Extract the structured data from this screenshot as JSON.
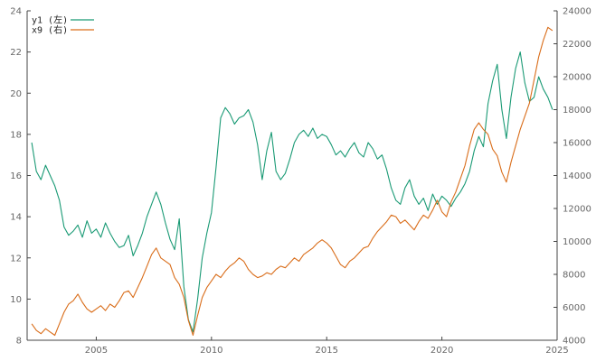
{
  "chart_data": {
    "type": "line",
    "title": "",
    "xlabel": "",
    "ylabel_left": "",
    "ylabel_right": "",
    "x_range": [
      2002.0,
      2025.0
    ],
    "y_left_range": [
      8,
      24
    ],
    "y_right_range": [
      4000,
      24000
    ],
    "x_ticks": [
      2005,
      2010,
      2015,
      2020,
      2025
    ],
    "y_left_ticks": [
      8,
      10,
      12,
      14,
      16,
      18,
      20,
      22,
      24
    ],
    "y_right_ticks": [
      4000,
      6000,
      8000,
      10000,
      12000,
      14000,
      16000,
      18000,
      20000,
      22000,
      24000
    ],
    "grid": false,
    "legend_position": "top-left",
    "series": [
      {
        "name": "y1 (左)",
        "axis": "left",
        "color": "#1a9a75",
        "points": [
          [
            2002.2,
            17.6
          ],
          [
            2002.4,
            16.2
          ],
          [
            2002.6,
            15.8
          ],
          [
            2002.8,
            16.5
          ],
          [
            2003.0,
            16.0
          ],
          [
            2003.2,
            15.5
          ],
          [
            2003.4,
            14.8
          ],
          [
            2003.6,
            13.5
          ],
          [
            2003.8,
            13.1
          ],
          [
            2004.0,
            13.3
          ],
          [
            2004.2,
            13.6
          ],
          [
            2004.4,
            13.0
          ],
          [
            2004.6,
            13.8
          ],
          [
            2004.8,
            13.2
          ],
          [
            2005.0,
            13.4
          ],
          [
            2005.2,
            13.0
          ],
          [
            2005.4,
            13.7
          ],
          [
            2005.6,
            13.2
          ],
          [
            2005.8,
            12.8
          ],
          [
            2006.0,
            12.5
          ],
          [
            2006.2,
            12.6
          ],
          [
            2006.4,
            13.1
          ],
          [
            2006.6,
            12.1
          ],
          [
            2006.8,
            12.6
          ],
          [
            2007.0,
            13.2
          ],
          [
            2007.2,
            14.0
          ],
          [
            2007.4,
            14.6
          ],
          [
            2007.6,
            15.2
          ],
          [
            2007.8,
            14.6
          ],
          [
            2008.0,
            13.7
          ],
          [
            2008.2,
            12.9
          ],
          [
            2008.4,
            12.4
          ],
          [
            2008.6,
            13.9
          ],
          [
            2008.8,
            10.6
          ],
          [
            2009.0,
            9.0
          ],
          [
            2009.2,
            8.4
          ],
          [
            2009.4,
            10.0
          ],
          [
            2009.6,
            12.0
          ],
          [
            2009.8,
            13.2
          ],
          [
            2010.0,
            14.2
          ],
          [
            2010.2,
            16.4
          ],
          [
            2010.4,
            18.8
          ],
          [
            2010.6,
            19.3
          ],
          [
            2010.8,
            19.0
          ],
          [
            2011.0,
            18.5
          ],
          [
            2011.2,
            18.8
          ],
          [
            2011.4,
            18.9
          ],
          [
            2011.6,
            19.2
          ],
          [
            2011.8,
            18.6
          ],
          [
            2012.0,
            17.5
          ],
          [
            2012.2,
            15.8
          ],
          [
            2012.4,
            17.2
          ],
          [
            2012.6,
            18.1
          ],
          [
            2012.8,
            16.2
          ],
          [
            2013.0,
            15.8
          ],
          [
            2013.2,
            16.1
          ],
          [
            2013.4,
            16.8
          ],
          [
            2013.6,
            17.6
          ],
          [
            2013.8,
            18.0
          ],
          [
            2014.0,
            18.2
          ],
          [
            2014.2,
            17.9
          ],
          [
            2014.4,
            18.3
          ],
          [
            2014.6,
            17.8
          ],
          [
            2014.8,
            18.0
          ],
          [
            2015.0,
            17.9
          ],
          [
            2015.2,
            17.5
          ],
          [
            2015.4,
            17.0
          ],
          [
            2015.6,
            17.2
          ],
          [
            2015.8,
            16.9
          ],
          [
            2016.0,
            17.3
          ],
          [
            2016.2,
            17.6
          ],
          [
            2016.4,
            17.1
          ],
          [
            2016.6,
            16.9
          ],
          [
            2016.8,
            17.6
          ],
          [
            2017.0,
            17.3
          ],
          [
            2017.2,
            16.8
          ],
          [
            2017.4,
            17.0
          ],
          [
            2017.6,
            16.3
          ],
          [
            2017.8,
            15.4
          ],
          [
            2018.0,
            14.8
          ],
          [
            2018.2,
            14.6
          ],
          [
            2018.4,
            15.4
          ],
          [
            2018.6,
            15.8
          ],
          [
            2018.8,
            15.0
          ],
          [
            2019.0,
            14.6
          ],
          [
            2019.2,
            14.9
          ],
          [
            2019.4,
            14.3
          ],
          [
            2019.6,
            15.1
          ],
          [
            2019.8,
            14.6
          ],
          [
            2020.0,
            15.0
          ],
          [
            2020.2,
            14.8
          ],
          [
            2020.4,
            14.5
          ],
          [
            2020.6,
            14.9
          ],
          [
            2020.8,
            15.2
          ],
          [
            2021.0,
            15.6
          ],
          [
            2021.2,
            16.2
          ],
          [
            2021.4,
            17.2
          ],
          [
            2021.6,
            17.9
          ],
          [
            2021.8,
            17.4
          ],
          [
            2022.0,
            19.5
          ],
          [
            2022.2,
            20.6
          ],
          [
            2022.4,
            21.4
          ],
          [
            2022.6,
            19.2
          ],
          [
            2022.8,
            17.8
          ],
          [
            2023.0,
            19.8
          ],
          [
            2023.2,
            21.2
          ],
          [
            2023.4,
            22.0
          ],
          [
            2023.6,
            20.5
          ],
          [
            2023.8,
            19.6
          ],
          [
            2024.0,
            19.8
          ],
          [
            2024.2,
            20.8
          ],
          [
            2024.4,
            20.2
          ],
          [
            2024.6,
            19.8
          ],
          [
            2024.8,
            19.2
          ]
        ]
      },
      {
        "name": "x9 (右)",
        "axis": "right",
        "color": "#d96d1a",
        "points": [
          [
            2002.2,
            5.0
          ],
          [
            2002.4,
            4.6
          ],
          [
            2002.6,
            4.4
          ],
          [
            2002.8,
            4.7
          ],
          [
            2003.0,
            4.5
          ],
          [
            2003.2,
            4.3
          ],
          [
            2003.4,
            5.0
          ],
          [
            2003.6,
            5.7
          ],
          [
            2003.8,
            6.2
          ],
          [
            2004.0,
            6.4
          ],
          [
            2004.2,
            6.8
          ],
          [
            2004.4,
            6.3
          ],
          [
            2004.6,
            5.9
          ],
          [
            2004.8,
            5.7
          ],
          [
            2005.0,
            5.9
          ],
          [
            2005.2,
            6.1
          ],
          [
            2005.4,
            5.8
          ],
          [
            2005.6,
            6.2
          ],
          [
            2005.8,
            6.0
          ],
          [
            2006.0,
            6.4
          ],
          [
            2006.2,
            6.9
          ],
          [
            2006.4,
            7.0
          ],
          [
            2006.6,
            6.6
          ],
          [
            2006.8,
            7.2
          ],
          [
            2007.0,
            7.8
          ],
          [
            2007.2,
            8.5
          ],
          [
            2007.4,
            9.2
          ],
          [
            2007.6,
            9.6
          ],
          [
            2007.8,
            9.0
          ],
          [
            2008.0,
            8.8
          ],
          [
            2008.2,
            8.6
          ],
          [
            2008.4,
            7.8
          ],
          [
            2008.6,
            7.4
          ],
          [
            2008.8,
            6.6
          ],
          [
            2009.0,
            5.2
          ],
          [
            2009.2,
            4.3
          ],
          [
            2009.4,
            5.5
          ],
          [
            2009.6,
            6.6
          ],
          [
            2009.8,
            7.2
          ],
          [
            2010.0,
            7.6
          ],
          [
            2010.2,
            8.0
          ],
          [
            2010.4,
            7.8
          ],
          [
            2010.6,
            8.2
          ],
          [
            2010.8,
            8.5
          ],
          [
            2011.0,
            8.7
          ],
          [
            2011.2,
            9.0
          ],
          [
            2011.4,
            8.8
          ],
          [
            2011.6,
            8.3
          ],
          [
            2011.8,
            8.0
          ],
          [
            2012.0,
            7.8
          ],
          [
            2012.2,
            7.9
          ],
          [
            2012.4,
            8.1
          ],
          [
            2012.6,
            8.0
          ],
          [
            2012.8,
            8.3
          ],
          [
            2013.0,
            8.5
          ],
          [
            2013.2,
            8.4
          ],
          [
            2013.4,
            8.7
          ],
          [
            2013.6,
            9.0
          ],
          [
            2013.8,
            8.8
          ],
          [
            2014.0,
            9.2
          ],
          [
            2014.2,
            9.4
          ],
          [
            2014.4,
            9.6
          ],
          [
            2014.6,
            9.9
          ],
          [
            2014.8,
            10.1
          ],
          [
            2015.0,
            9.9
          ],
          [
            2015.2,
            9.6
          ],
          [
            2015.4,
            9.1
          ],
          [
            2015.6,
            8.6
          ],
          [
            2015.8,
            8.4
          ],
          [
            2016.0,
            8.8
          ],
          [
            2016.2,
            9.0
          ],
          [
            2016.4,
            9.3
          ],
          [
            2016.6,
            9.6
          ],
          [
            2016.8,
            9.7
          ],
          [
            2017.0,
            10.2
          ],
          [
            2017.2,
            10.6
          ],
          [
            2017.4,
            10.9
          ],
          [
            2017.6,
            11.2
          ],
          [
            2017.8,
            11.6
          ],
          [
            2018.0,
            11.5
          ],
          [
            2018.2,
            11.1
          ],
          [
            2018.4,
            11.3
          ],
          [
            2018.6,
            11.0
          ],
          [
            2018.8,
            10.7
          ],
          [
            2019.0,
            11.2
          ],
          [
            2019.2,
            11.6
          ],
          [
            2019.4,
            11.4
          ],
          [
            2019.6,
            11.9
          ],
          [
            2019.8,
            12.5
          ],
          [
            2020.0,
            11.8
          ],
          [
            2020.2,
            11.5
          ],
          [
            2020.4,
            12.4
          ],
          [
            2020.6,
            13.0
          ],
          [
            2020.8,
            13.8
          ],
          [
            2021.0,
            14.6
          ],
          [
            2021.2,
            15.8
          ],
          [
            2021.4,
            16.8
          ],
          [
            2021.6,
            17.2
          ],
          [
            2021.8,
            16.8
          ],
          [
            2022.0,
            16.5
          ],
          [
            2022.2,
            15.6
          ],
          [
            2022.4,
            15.2
          ],
          [
            2022.6,
            14.2
          ],
          [
            2022.8,
            13.6
          ],
          [
            2023.0,
            14.8
          ],
          [
            2023.2,
            15.8
          ],
          [
            2023.4,
            16.8
          ],
          [
            2023.6,
            17.6
          ],
          [
            2023.8,
            18.4
          ],
          [
            2024.0,
            19.8
          ],
          [
            2024.2,
            21.2
          ],
          [
            2024.4,
            22.2
          ],
          [
            2024.6,
            23.0
          ],
          [
            2024.8,
            22.8
          ]
        ]
      }
    ]
  }
}
